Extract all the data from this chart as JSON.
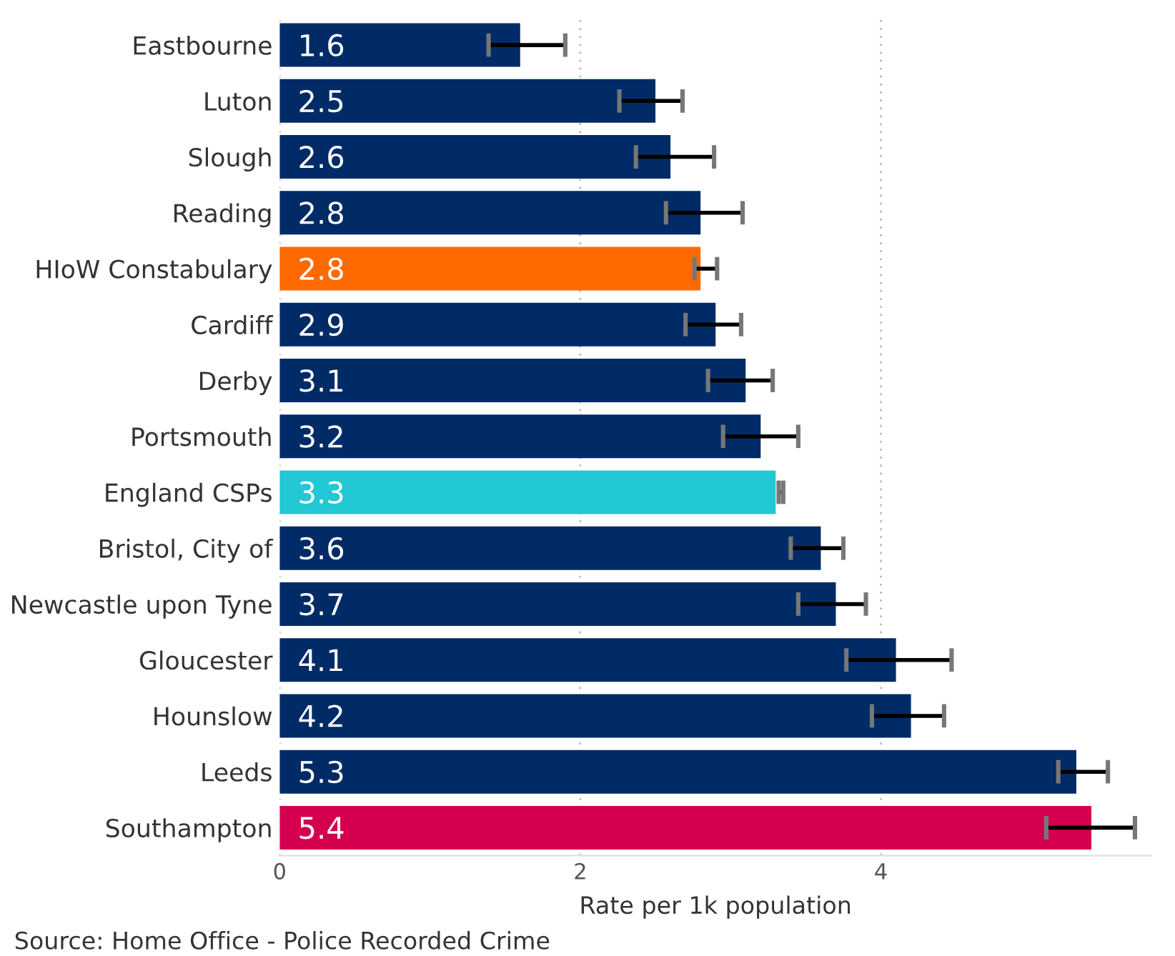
{
  "chart_data": {
    "type": "bar",
    "orientation": "horizontal",
    "xlabel": "Rate per 1k population",
    "categories": [
      "Eastbourne",
      "Luton",
      "Slough",
      "Reading",
      "HIoW Constabulary",
      "Cardiff",
      "Derby",
      "Portsmouth",
      "England CSPs",
      "Bristol, City of",
      "Newcastle upon Tyne",
      "Gloucester",
      "Hounslow",
      "Leeds",
      "Southampton"
    ],
    "values": [
      1.6,
      2.5,
      2.6,
      2.8,
      2.8,
      2.9,
      3.1,
      3.2,
      3.3,
      3.6,
      3.7,
      4.1,
      4.2,
      5.3,
      5.4
    ],
    "colors": [
      "#002b66",
      "#002b66",
      "#002b66",
      "#002b66",
      "#ff6a00",
      "#002b66",
      "#002b66",
      "#002b66",
      "#22c8d4",
      "#002b66",
      "#002b66",
      "#002b66",
      "#002b66",
      "#002b66",
      "#d4004f"
    ],
    "errors": [
      [
        1.39,
        1.9
      ],
      [
        2.26,
        2.68
      ],
      [
        2.37,
        2.89
      ],
      [
        2.57,
        3.08
      ],
      [
        2.76,
        2.91
      ],
      [
        2.7,
        3.07
      ],
      [
        2.85,
        3.28
      ],
      [
        2.95,
        3.45
      ],
      [
        3.32,
        3.35
      ],
      [
        3.4,
        3.75
      ],
      [
        3.45,
        3.9
      ],
      [
        3.77,
        4.47
      ],
      [
        3.94,
        4.42
      ],
      [
        5.18,
        5.51
      ],
      [
        5.1,
        5.69
      ]
    ],
    "data_labels": true,
    "xlim": [
      0,
      5.8
    ],
    "xticks": [
      0,
      2,
      4
    ],
    "grid": "x",
    "annotations": [
      "Source: Home Office - Police Recorded Crime"
    ]
  }
}
